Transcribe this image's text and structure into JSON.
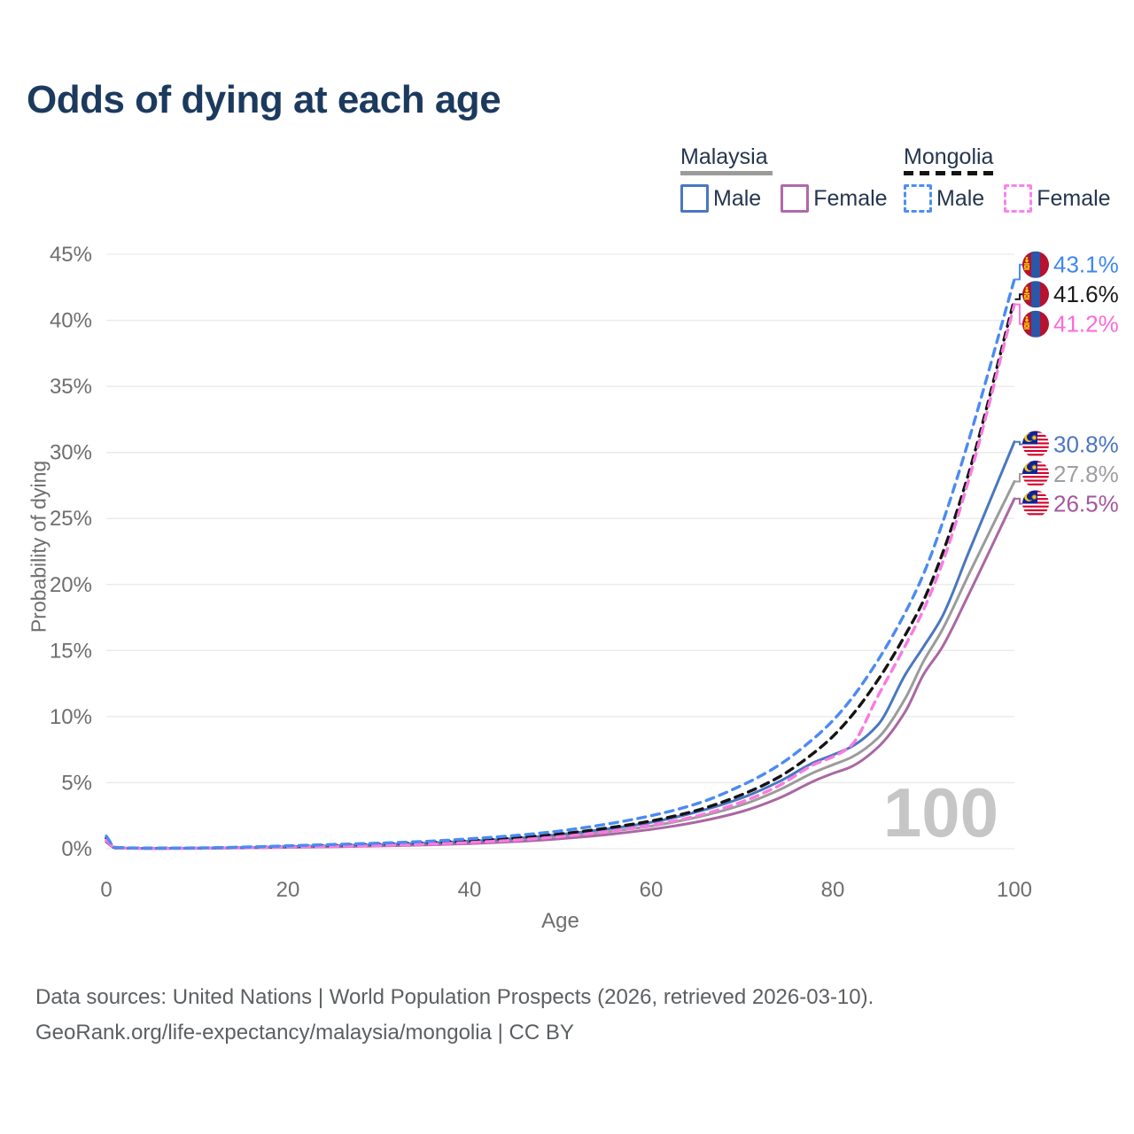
{
  "title": "Odds of dying at each age",
  "legend": {
    "groups": [
      {
        "label": "Malaysia",
        "line_style": "solid",
        "underline_color": "#9b9b9b",
        "items": [
          {
            "label": "Male",
            "color": "#4a77c0",
            "dash": false
          },
          {
            "label": "Female",
            "color": "#b168ac",
            "dash": false
          }
        ]
      },
      {
        "label": "Mongolia",
        "line_style": "dashed",
        "underline_color": "#141414",
        "items": [
          {
            "label": "Male",
            "color": "#4d8ef5",
            "dash": true
          },
          {
            "label": "Female",
            "color": "#fc82e8",
            "dash": true
          }
        ]
      }
    ]
  },
  "chart_data": {
    "type": "line",
    "title": "Odds of dying at each age",
    "xlabel": "Age",
    "ylabel": "Probability of dying",
    "x_ticks": [
      0,
      20,
      40,
      60,
      80,
      100
    ],
    "y_ticks_pct": [
      0,
      5,
      10,
      15,
      20,
      25,
      30,
      35,
      40,
      45
    ],
    "xlim": [
      0,
      100
    ],
    "ylim_pct": [
      0,
      45
    ],
    "grid": "horizontal",
    "watermark": "100",
    "x": [
      0,
      1,
      5,
      10,
      15,
      20,
      25,
      30,
      35,
      40,
      45,
      50,
      55,
      60,
      65,
      70,
      74,
      78,
      80,
      82,
      85,
      88,
      90,
      92,
      95,
      100
    ],
    "series": [
      {
        "name": "Malaysia total",
        "country": "malaysia",
        "sex": "both",
        "color": "#9b9b9b",
        "dash": false,
        "flag": "malaysia",
        "end_label": "27.8%",
        "end_label_color": "#9e9ea2",
        "values": [
          0.55,
          0.05,
          0.03,
          0.04,
          0.08,
          0.13,
          0.19,
          0.26,
          0.35,
          0.48,
          0.66,
          0.92,
          1.27,
          1.72,
          2.38,
          3.32,
          4.42,
          5.8,
          6.35,
          6.9,
          8.4,
          11.4,
          14.2,
          16.5,
          20.8,
          27.8
        ]
      },
      {
        "name": "Malaysia female",
        "country": "malaysia",
        "sex": "female",
        "color": "#aa67a3",
        "dash": false,
        "flag": "malaysia",
        "end_label": "26.5%",
        "end_label_color": "#a4579e",
        "values": [
          0.5,
          0.05,
          0.02,
          0.03,
          0.06,
          0.1,
          0.15,
          0.21,
          0.28,
          0.39,
          0.54,
          0.76,
          1.06,
          1.46,
          2.02,
          2.82,
          3.8,
          5.15,
          5.7,
          6.2,
          7.7,
          10.4,
          13.2,
          15.2,
          19.3,
          26.5
        ]
      },
      {
        "name": "Malaysia male",
        "country": "malaysia",
        "sex": "male",
        "color": "#4a77c0",
        "dash": false,
        "flag": "malaysia",
        "end_label": "30.8%",
        "end_label_color": "#4a77c0",
        "values": [
          0.6,
          0.06,
          0.03,
          0.04,
          0.09,
          0.16,
          0.23,
          0.31,
          0.42,
          0.57,
          0.78,
          1.08,
          1.48,
          2.0,
          2.78,
          3.85,
          5.05,
          6.55,
          7.1,
          7.7,
          9.4,
          13.2,
          15.3,
          17.5,
          22.5,
          30.8
        ]
      },
      {
        "name": "Mongolia total",
        "country": "mongolia",
        "sex": "both",
        "color": "#141414",
        "dash": true,
        "flag": "mongolia",
        "end_label": "41.6%",
        "end_label_color": "#1a1a1a",
        "values": [
          0.8,
          0.08,
          0.04,
          0.05,
          0.1,
          0.17,
          0.25,
          0.34,
          0.45,
          0.6,
          0.82,
          1.12,
          1.55,
          2.1,
          2.9,
          4.1,
          5.4,
          7.3,
          8.5,
          10.0,
          12.8,
          16.2,
          18.8,
          22.2,
          28.5,
          41.6
        ]
      },
      {
        "name": "Mongolia female",
        "country": "mongolia",
        "sex": "female",
        "color": "#f97ae0",
        "dash": true,
        "flag": "mongolia",
        "end_label": "41.2%",
        "end_label_color": "#fb6ad9",
        "values": [
          0.65,
          0.07,
          0.03,
          0.04,
          0.08,
          0.13,
          0.18,
          0.25,
          0.34,
          0.47,
          0.65,
          0.92,
          1.28,
          1.78,
          2.48,
          3.55,
          4.75,
          6.4,
          6.95,
          7.8,
          11.6,
          15.4,
          18.1,
          21.5,
          28.0,
          41.2
        ]
      },
      {
        "name": "Mongolia male",
        "country": "mongolia",
        "sex": "male",
        "color": "#4b8bf2",
        "dash": true,
        "flag": "mongolia",
        "end_label": "43.1%",
        "end_label_color": "#3d87f0",
        "values": [
          0.95,
          0.1,
          0.05,
          0.06,
          0.12,
          0.22,
          0.32,
          0.42,
          0.55,
          0.75,
          1.0,
          1.35,
          1.85,
          2.5,
          3.4,
          4.8,
          6.3,
          8.4,
          9.7,
          11.3,
          14.3,
          17.9,
          20.8,
          24.5,
          31.0,
          43.1
        ]
      }
    ]
  },
  "footer": {
    "line1": "Data sources: United Nations | World Population Prospects (2026, retrieved 2026-03-10).",
    "line2": "GeoRank.org/life-expectancy/malaysia/mongolia | CC BY"
  }
}
